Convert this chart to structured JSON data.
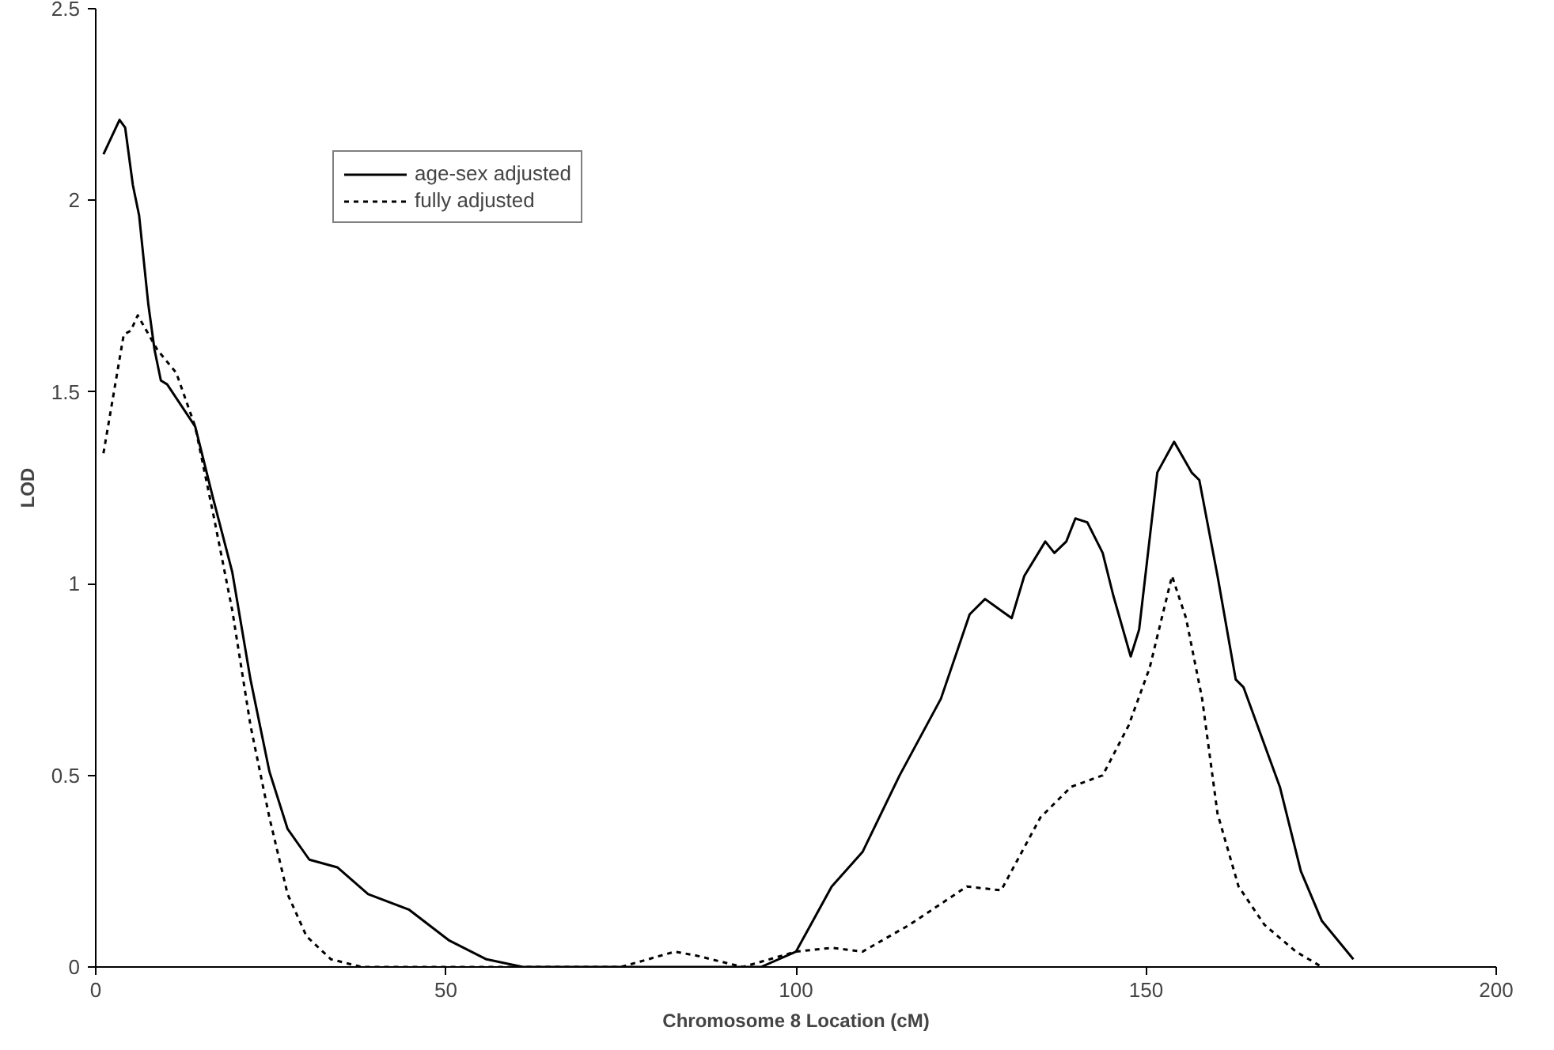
{
  "chart_data": {
    "type": "line",
    "xlabel": "Chromosome 8 Location (cM)",
    "ylabel": "LOD",
    "xlim": [
      0,
      200
    ],
    "xticks": [
      0,
      50,
      100,
      150,
      200
    ],
    "ylim": [
      0,
      2.5
    ],
    "yticks": [
      0,
      0.5,
      1,
      1.5,
      2,
      2.5
    ],
    "grid": false,
    "legend": "top left",
    "series": [
      {
        "name": "age-sex adjusted",
        "color": "#000000",
        "line_style": "solid",
        "x": [
          1.1,
          3.4,
          4.2,
          5.3,
          6.2,
          7.5,
          8.4,
          9.3,
          10.2,
          14.2,
          16.8,
          19.5,
          22.1,
          24.8,
          27.4,
          30.5,
          34.5,
          38.9,
          44.7,
          50.4,
          55.8,
          61,
          70,
          80,
          90,
          95,
          100,
          105.1,
          109.5,
          114.8,
          120.7,
          124.8,
          127,
          130.8,
          132.6,
          135.6,
          136.9,
          138.6,
          139.9,
          141.6,
          143.8,
          145.3,
          147.8,
          149,
          151.6,
          154,
          156.5,
          157.6,
          160.2,
          162.8,
          163.9,
          169.1,
          172.1,
          175.1,
          179.6
        ],
        "values": [
          2.12,
          2.21,
          2.19,
          2.04,
          1.96,
          1.73,
          1.61,
          1.53,
          1.52,
          1.41,
          1.22,
          1.03,
          0.75,
          0.51,
          0.36,
          0.28,
          0.26,
          0.19,
          0.15,
          0.07,
          0.02,
          0,
          0,
          0,
          0,
          0,
          0.04,
          0.21,
          0.3,
          0.5,
          0.7,
          0.92,
          0.96,
          0.91,
          1.02,
          1.11,
          1.08,
          1.11,
          1.17,
          1.16,
          1.08,
          0.97,
          0.81,
          0.88,
          1.29,
          1.37,
          1.29,
          1.27,
          1.02,
          0.75,
          0.73,
          0.47,
          0.25,
          0.12,
          0.02
        ]
      },
      {
        "name": "fully adjusted",
        "color": "#000000",
        "line_style": "dotted",
        "x": [
          1.1,
          4,
          5,
          6,
          8.8,
          11.5,
          14.2,
          16.8,
          19.5,
          22.1,
          24.8,
          27.4,
          30.1,
          33.6,
          38,
          50,
          60,
          75,
          82.7,
          85.7,
          92.4,
          100,
          105.1,
          109.5,
          116.2,
          124.4,
          129.3,
          134.9,
          139.3,
          143.8,
          147.5,
          150.5,
          153.7,
          155.7,
          158,
          160.2,
          163.2,
          166.9,
          171.4,
          175.1
        ],
        "values": [
          1.34,
          1.65,
          1.66,
          1.7,
          1.61,
          1.55,
          1.41,
          1.18,
          0.93,
          0.63,
          0.39,
          0.19,
          0.08,
          0.02,
          0,
          0,
          0,
          0,
          0.04,
          0.03,
          0,
          0.04,
          0.05,
          0.04,
          0.11,
          0.21,
          0.2,
          0.39,
          0.47,
          0.5,
          0.63,
          0.78,
          1.02,
          0.91,
          0.7,
          0.4,
          0.21,
          0.11,
          0.04,
          0
        ]
      }
    ]
  }
}
